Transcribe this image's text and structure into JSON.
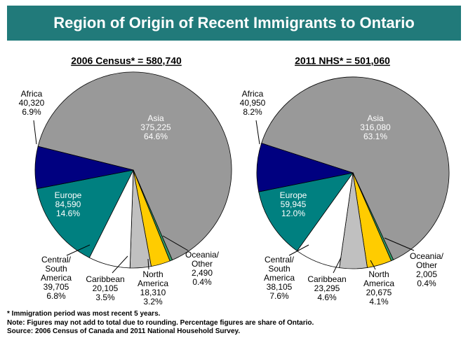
{
  "header": {
    "title": "Region of Origin of Recent Immigrants to Ontario"
  },
  "chart_data": [
    {
      "type": "pie",
      "title": "2006 Census* = 580,740",
      "categories": [
        "Asia",
        "Oceania/\nOther",
        "North\nAmerica",
        "Caribbean",
        "Central/\nSouth\nAmerica",
        "Europe",
        "Africa"
      ],
      "values": [
        375225,
        2490,
        18310,
        20105,
        39705,
        84590,
        40320
      ],
      "value_labels": [
        "375,225",
        "2,490",
        "18,310",
        "20,105",
        "39,705",
        "84,590",
        "40,320"
      ],
      "percent_labels": [
        "64.6%",
        "0.4%",
        "3.2%",
        "3.5%",
        "6.8%",
        "14.6%",
        "6.9%"
      ],
      "colors": [
        "#999999",
        "#339966",
        "#ffcc00",
        "#c0c0c0",
        "#ffffff",
        "#008080",
        "#000080"
      ]
    },
    {
      "type": "pie",
      "title": "2011 NHS* = 501,060",
      "categories": [
        "Asia",
        "Oceania/\nOther",
        "North\nAmerica",
        "Caribbean",
        "Central/\nSouth\nAmerica",
        "Europe",
        "Africa"
      ],
      "values": [
        316080,
        2005,
        20675,
        23295,
        38105,
        59945,
        40950
      ],
      "value_labels": [
        "316,080",
        "2,005",
        "20,675",
        "23,295",
        "38,105",
        "59,945",
        "40,950"
      ],
      "percent_labels": [
        "63.1%",
        "0.4%",
        "4.1%",
        "4.6%",
        "7.6%",
        "12.0%",
        "8.2%"
      ],
      "colors": [
        "#999999",
        "#339966",
        "#ffcc00",
        "#c0c0c0",
        "#ffffff",
        "#008080",
        "#000080"
      ]
    }
  ],
  "notes": [
    "* Immigration period was most recent 5 years.",
    "Note: Figures may not add to total due to rounding. Percentage figures are share of Ontario.",
    "Source: 2006 Census of Canada and 2011 National Household Survey."
  ]
}
